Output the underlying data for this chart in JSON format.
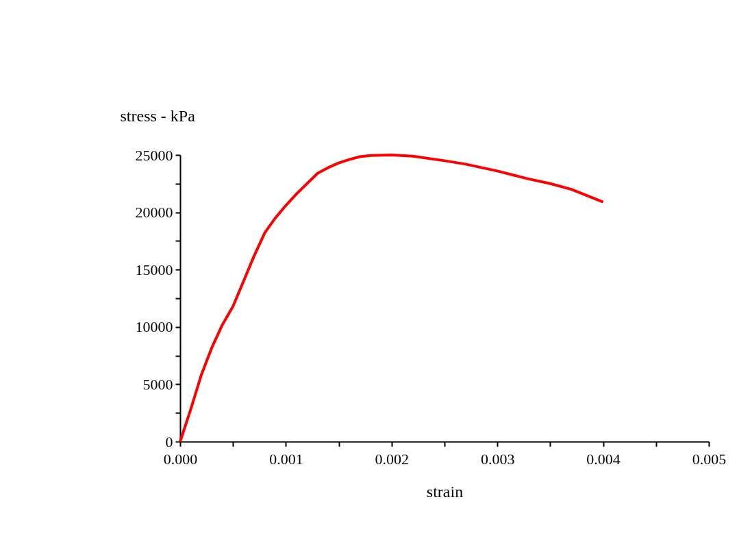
{
  "chart_data": {
    "type": "line",
    "xlabel": "strain",
    "ylabel": "stress - kPa",
    "x": [
      0,
      0.0001,
      0.0002,
      0.0003,
      0.0004,
      0.0005,
      0.0006,
      0.0007,
      0.0008,
      0.0009,
      0.001,
      0.0011,
      0.0012,
      0.0013,
      0.0014,
      0.0015,
      0.0016,
      0.0017,
      0.0018,
      0.002,
      0.0022,
      0.0025,
      0.0027,
      0.003,
      0.0033,
      0.0035,
      0.0037,
      0.004
    ],
    "series": [
      {
        "color": "#ff0000",
        "values": [
          0,
          2800,
          5800,
          8200,
          10200,
          11800,
          14000,
          16200,
          18200,
          19500,
          20600,
          21600,
          22500,
          23400,
          23900,
          24300,
          24600,
          24850,
          24950,
          25000,
          24900,
          24500,
          24200,
          23600,
          22900,
          22500,
          22000,
          20900
        ]
      }
    ],
    "xlim": [
      0,
      0.005
    ],
    "xticks": [
      {
        "value": 0,
        "label": "0.000"
      },
      {
        "value": 0.0005,
        "label": null
      },
      {
        "value": 0.001,
        "label": "0.001"
      },
      {
        "value": 0.0015,
        "label": null
      },
      {
        "value": 0.002,
        "label": "0.002"
      },
      {
        "value": 0.0025,
        "label": null
      },
      {
        "value": 0.003,
        "label": "0.003"
      },
      {
        "value": 0.0035,
        "label": null
      },
      {
        "value": 0.004,
        "label": "0.004"
      },
      {
        "value": 0.0045,
        "label": null
      },
      {
        "value": 0.005,
        "label": "0.005"
      }
    ],
    "ylim": [
      0,
      25000
    ],
    "yticks": [
      0,
      {
        "value": 2500,
        "label": null
      },
      5000,
      {
        "value": 7500,
        "label": null
      },
      10000,
      {
        "value": 12500,
        "label": null
      },
      15000,
      {
        "value": 17500,
        "label": null
      },
      20000,
      {
        "value": 22500,
        "label": null
      },
      25000
    ],
    "grid": false,
    "marker": "none",
    "line_style": "solid"
  }
}
